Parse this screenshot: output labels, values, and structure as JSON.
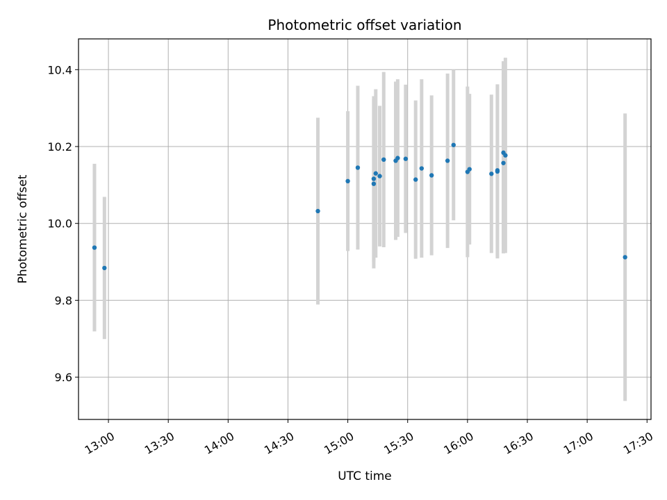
{
  "chart_data": {
    "type": "scatter",
    "title": "Photometric offset variation",
    "xlabel": "UTC time",
    "ylabel": "Photometric offset",
    "x_axis_type": "time",
    "xlim": [
      "12:45",
      "17:32"
    ],
    "ylim": [
      9.49,
      10.48
    ],
    "grid": true,
    "legend": "none",
    "x_ticks": [
      "13:00",
      "13:30",
      "14:00",
      "14:30",
      "15:00",
      "15:30",
      "16:00",
      "16:30",
      "17:00",
      "17:30"
    ],
    "y_ticks": [
      9.6,
      9.8,
      10.0,
      10.2,
      10.4
    ],
    "colors": {
      "point": "#1f77b4",
      "errorbar": "#d3d3d3",
      "grid": "#b0b0b0"
    },
    "points": [
      {
        "x": "12:53",
        "y": 9.937,
        "yerr": 0.218
      },
      {
        "x": "12:58",
        "y": 9.884,
        "yerr": 0.185
      },
      {
        "x": "14:45",
        "y": 10.032,
        "yerr": 0.243
      },
      {
        "x": "15:00",
        "y": 10.11,
        "yerr": 0.182
      },
      {
        "x": "15:05",
        "y": 10.145,
        "yerr": 0.213
      },
      {
        "x": "15:13",
        "y": 10.116,
        "yerr": 0.215
      },
      {
        "x": "15:13",
        "y": 10.103,
        "yerr": 0.22
      },
      {
        "x": "15:14",
        "y": 10.13,
        "yerr": 0.219
      },
      {
        "x": "15:16",
        "y": 10.123,
        "yerr": 0.183
      },
      {
        "x": "15:18",
        "y": 10.166,
        "yerr": 0.228
      },
      {
        "x": "15:24",
        "y": 10.163,
        "yerr": 0.206
      },
      {
        "x": "15:25",
        "y": 10.17,
        "yerr": 0.205
      },
      {
        "x": "15:29",
        "y": 10.168,
        "yerr": 0.193
      },
      {
        "x": "15:34",
        "y": 10.114,
        "yerr": 0.206
      },
      {
        "x": "15:37",
        "y": 10.143,
        "yerr": 0.232
      },
      {
        "x": "15:42",
        "y": 10.125,
        "yerr": 0.208
      },
      {
        "x": "15:50",
        "y": 10.163,
        "yerr": 0.227
      },
      {
        "x": "15:53",
        "y": 10.204,
        "yerr": 0.196
      },
      {
        "x": "16:00",
        "y": 10.134,
        "yerr": 0.222
      },
      {
        "x": "16:01",
        "y": 10.141,
        "yerr": 0.196
      },
      {
        "x": "16:12",
        "y": 10.129,
        "yerr": 0.206
      },
      {
        "x": "16:15",
        "y": 10.138,
        "yerr": 0.224
      },
      {
        "x": "16:15",
        "y": 10.135,
        "yerr": 0.226
      },
      {
        "x": "16:18",
        "y": 10.184,
        "yerr": 0.238
      },
      {
        "x": "16:18",
        "y": 10.157,
        "yerr": 0.235
      },
      {
        "x": "16:19",
        "y": 10.177,
        "yerr": 0.254
      },
      {
        "x": "17:19",
        "y": 9.912,
        "yerr": 0.374
      }
    ]
  }
}
